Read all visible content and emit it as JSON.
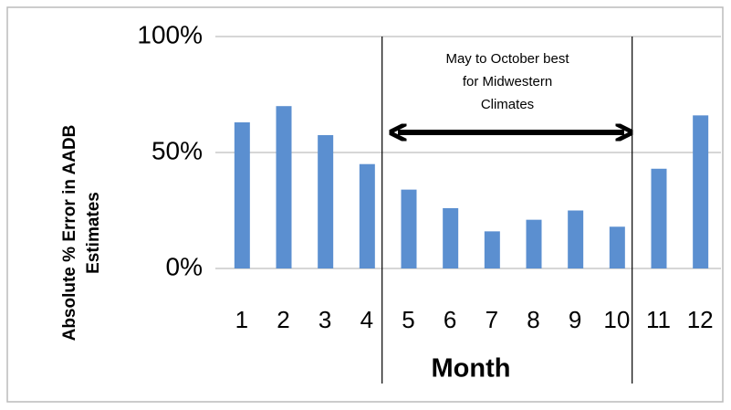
{
  "chart_data": {
    "type": "bar",
    "ylabel": [
      "Absolute % Error in AADB",
      "Estimates"
    ],
    "xlabel": "Month",
    "annotation": [
      "May to October best",
      "for Midwestern",
      "Climates"
    ],
    "categories": [
      "1",
      "2",
      "3",
      "4",
      "5",
      "6",
      "7",
      "8",
      "9",
      "10",
      "11",
      "12"
    ],
    "values": [
      63,
      70,
      57.5,
      45,
      34,
      26,
      16,
      21,
      25,
      18,
      43,
      66
    ],
    "color": "#5b8fd0",
    "ylim": [
      0,
      100
    ],
    "yticks": [
      {
        "value": 0,
        "label": "0%"
      },
      {
        "value": 50,
        "label": "50%"
      },
      {
        "value": 100,
        "label": "100%"
      }
    ],
    "grid": true
  }
}
